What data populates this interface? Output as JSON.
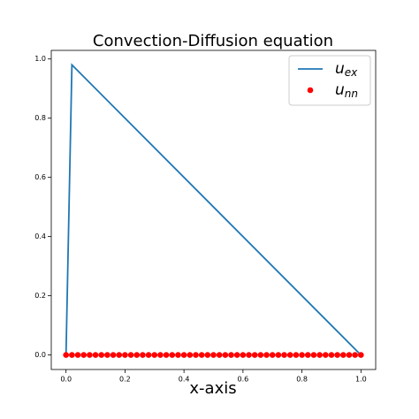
{
  "chart_data": {
    "type": "line",
    "title": "Convection-Diffusion equation",
    "x_label": "x-axis",
    "xlim": [
      -0.05,
      1.05
    ],
    "ylim": [
      -0.049,
      1.029
    ],
    "xticks": [
      {
        "value": 0,
        "label": "0.0"
      },
      {
        "value": 0.2,
        "label": "0.2"
      },
      {
        "value": 0.4,
        "label": "0.4"
      },
      {
        "value": 0.6,
        "label": "0.6"
      },
      {
        "value": 0.8,
        "label": "0.8"
      },
      {
        "value": 1,
        "label": "1.0"
      }
    ],
    "yticks": [
      {
        "value": 0,
        "label": "0.0"
      },
      {
        "value": 0.2,
        "label": "0.2"
      },
      {
        "value": 0.4,
        "label": "0.4"
      },
      {
        "value": 0.6,
        "label": "0.6"
      },
      {
        "value": 0.8,
        "label": "0.8"
      },
      {
        "value": 1,
        "label": "1.0"
      }
    ],
    "legend": "upper right",
    "series": [
      {
        "name": "u_ex",
        "type": "line",
        "color": "#1f77b4",
        "x": [
          0,
          0.02,
          1
        ],
        "values": [
          0,
          0.98,
          0
        ]
      },
      {
        "name": "u_nn",
        "type": "scatter",
        "color": "#ff0000",
        "x": [
          0,
          0.02,
          0.04,
          0.06,
          0.08,
          0.1,
          0.12,
          0.14,
          0.16,
          0.18,
          0.2,
          0.22,
          0.24,
          0.26,
          0.28,
          0.3,
          0.32,
          0.34,
          0.36,
          0.38,
          0.4,
          0.42,
          0.44,
          0.46,
          0.48,
          0.5,
          0.52,
          0.54,
          0.56,
          0.58,
          0.6,
          0.62,
          0.64,
          0.66,
          0.68,
          0.7,
          0.72,
          0.74,
          0.76,
          0.78,
          0.8,
          0.82,
          0.84,
          0.86,
          0.88,
          0.9,
          0.92,
          0.94,
          0.96,
          0.98,
          1
        ],
        "values": [
          0,
          0,
          0,
          0,
          0,
          0,
          0,
          0,
          0,
          0,
          0,
          0,
          0,
          0,
          0,
          0,
          0,
          0,
          0,
          0,
          0,
          0,
          0,
          0,
          0,
          0,
          0,
          0,
          0,
          0,
          0,
          0,
          0,
          0,
          0,
          0,
          0,
          0,
          0,
          0,
          0,
          0,
          0,
          0,
          0,
          0,
          0,
          0,
          0,
          0,
          0
        ]
      }
    ]
  }
}
